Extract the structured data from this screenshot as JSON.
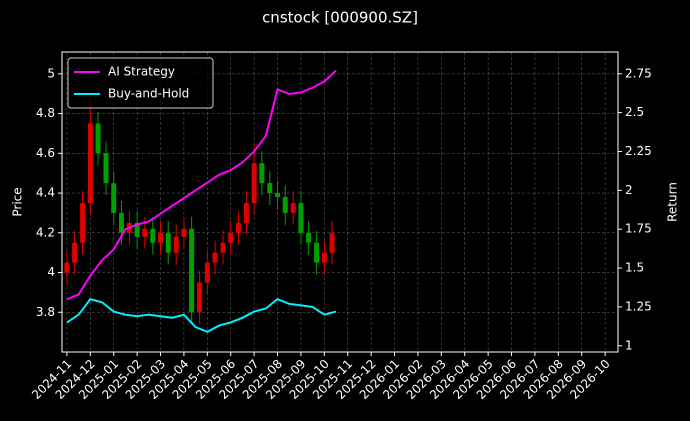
{
  "chart_data": {
    "type": "candlestick",
    "title": "cnstock [000900.SZ]",
    "ylabel": "Price",
    "y2label": "Return",
    "xlim": [
      -0.21,
      23.55
    ],
    "xticks": [
      {
        "value": 0,
        "label": "2024-11"
      },
      {
        "value": 1,
        "label": "2024-12"
      },
      {
        "value": 2,
        "label": "2025-01"
      },
      {
        "value": 3,
        "label": "2025-02"
      },
      {
        "value": 4,
        "label": "2025-03"
      },
      {
        "value": 5,
        "label": "2025-04"
      },
      {
        "value": 6,
        "label": "2025-05"
      },
      {
        "value": 7,
        "label": "2025-06"
      },
      {
        "value": 8,
        "label": "2025-07"
      },
      {
        "value": 9,
        "label": "2025-08"
      },
      {
        "value": 10,
        "label": "2025-09"
      },
      {
        "value": 11,
        "label": "2025-10"
      },
      {
        "value": 12,
        "label": "2025-11"
      },
      {
        "value": 13,
        "label": "2025-12"
      },
      {
        "value": 14,
        "label": "2026-01"
      },
      {
        "value": 15,
        "label": "2026-02"
      },
      {
        "value": 16,
        "label": "2026-03"
      },
      {
        "value": 17,
        "label": "2026-04"
      },
      {
        "value": 18,
        "label": "2026-05"
      },
      {
        "value": 19,
        "label": "2026-06"
      },
      {
        "value": 20,
        "label": "2026-07"
      },
      {
        "value": 21,
        "label": "2026-08"
      },
      {
        "value": 22,
        "label": "2026-09"
      },
      {
        "value": 23,
        "label": "2026-10"
      }
    ],
    "ylim": [
      3.6,
      5.11
    ],
    "yticks": [
      3.8,
      4.0,
      4.2,
      4.4,
      4.6,
      4.8,
      5.0
    ],
    "y2lim": [
      0.96,
      2.89
    ],
    "y2ticks": [
      1.0,
      1.25,
      1.5,
      1.75,
      2.0,
      2.25,
      2.5,
      2.75
    ],
    "grid": true,
    "legend": "upper left",
    "candles": {
      "up_color": "#e00000",
      "down_color": "#00a000",
      "x": [
        0,
        0.33,
        0.67,
        1,
        1.33,
        1.67,
        2,
        2.33,
        2.67,
        3,
        3.33,
        3.67,
        4,
        4.33,
        4.67,
        5,
        5.33,
        5.67,
        6,
        6.33,
        6.67,
        7,
        7.33,
        7.67,
        8,
        8.33,
        8.67,
        9,
        9.33,
        9.67,
        10,
        10.33,
        10.67,
        11,
        11.33
      ],
      "open": [
        4.0,
        4.05,
        4.15,
        4.35,
        4.75,
        4.6,
        4.45,
        4.3,
        4.2,
        4.25,
        4.18,
        4.22,
        4.15,
        4.2,
        4.1,
        4.18,
        4.22,
        3.8,
        3.95,
        4.05,
        4.1,
        4.15,
        4.2,
        4.25,
        4.35,
        4.55,
        4.45,
        4.4,
        4.38,
        4.3,
        4.35,
        4.2,
        4.15,
        4.05,
        4.1
      ],
      "high": [
        4.11,
        4.21,
        4.41,
        4.88,
        4.81,
        4.66,
        4.51,
        4.36,
        4.31,
        4.31,
        4.28,
        4.28,
        4.26,
        4.26,
        4.24,
        4.28,
        4.28,
        4.01,
        4.11,
        4.16,
        4.21,
        4.26,
        4.31,
        4.41,
        4.65,
        4.61,
        4.51,
        4.46,
        4.44,
        4.41,
        4.41,
        4.26,
        4.21,
        4.16,
        4.26
      ],
      "low": [
        3.94,
        3.99,
        4.09,
        4.29,
        4.54,
        4.39,
        4.24,
        4.14,
        4.14,
        4.12,
        4.12,
        4.09,
        4.09,
        4.04,
        4.04,
        4.12,
        3.74,
        3.74,
        3.89,
        3.99,
        4.04,
        4.09,
        4.14,
        4.19,
        4.29,
        4.39,
        4.34,
        4.32,
        4.24,
        4.24,
        4.14,
        4.09,
        3.99,
        3.99,
        4.04
      ],
      "close": [
        4.05,
        4.15,
        4.35,
        4.75,
        4.6,
        4.45,
        4.3,
        4.2,
        4.25,
        4.18,
        4.22,
        4.15,
        4.2,
        4.1,
        4.18,
        4.22,
        3.8,
        3.95,
        4.05,
        4.1,
        4.15,
        4.2,
        4.25,
        4.35,
        4.55,
        4.45,
        4.4,
        4.38,
        4.3,
        4.35,
        4.2,
        4.15,
        4.05,
        4.1,
        4.2
      ]
    },
    "series": [
      {
        "name": "AI Strategy",
        "color": "#ff00ff",
        "axis": "y2",
        "x": [
          0,
          0.5,
          1,
          1.5,
          2,
          2.5,
          3,
          3.5,
          4,
          4.5,
          5,
          5.5,
          6,
          6.5,
          7,
          7.5,
          8,
          8.5,
          9,
          9.5,
          10,
          10.5,
          11,
          11.5
        ],
        "values": [
          1.3,
          1.33,
          1.45,
          1.55,
          1.62,
          1.75,
          1.78,
          1.8,
          1.85,
          1.9,
          1.95,
          2.0,
          2.05,
          2.1,
          2.13,
          2.18,
          2.25,
          2.35,
          2.65,
          2.62,
          2.63,
          2.66,
          2.7,
          2.77
        ]
      },
      {
        "name": "Buy-and-Hold",
        "color": "#00f0ff",
        "axis": "y2",
        "x": [
          0,
          0.5,
          1,
          1.5,
          2,
          2.5,
          3,
          3.5,
          4,
          4.5,
          5,
          5.5,
          6,
          6.5,
          7,
          7.5,
          8,
          8.5,
          9,
          9.5,
          10,
          10.5,
          11,
          11.5
        ],
        "values": [
          1.15,
          1.2,
          1.3,
          1.28,
          1.22,
          1.2,
          1.19,
          1.2,
          1.19,
          1.18,
          1.2,
          1.12,
          1.09,
          1.13,
          1.15,
          1.18,
          1.22,
          1.24,
          1.3,
          1.27,
          1.26,
          1.25,
          1.2,
          1.22
        ]
      }
    ]
  }
}
